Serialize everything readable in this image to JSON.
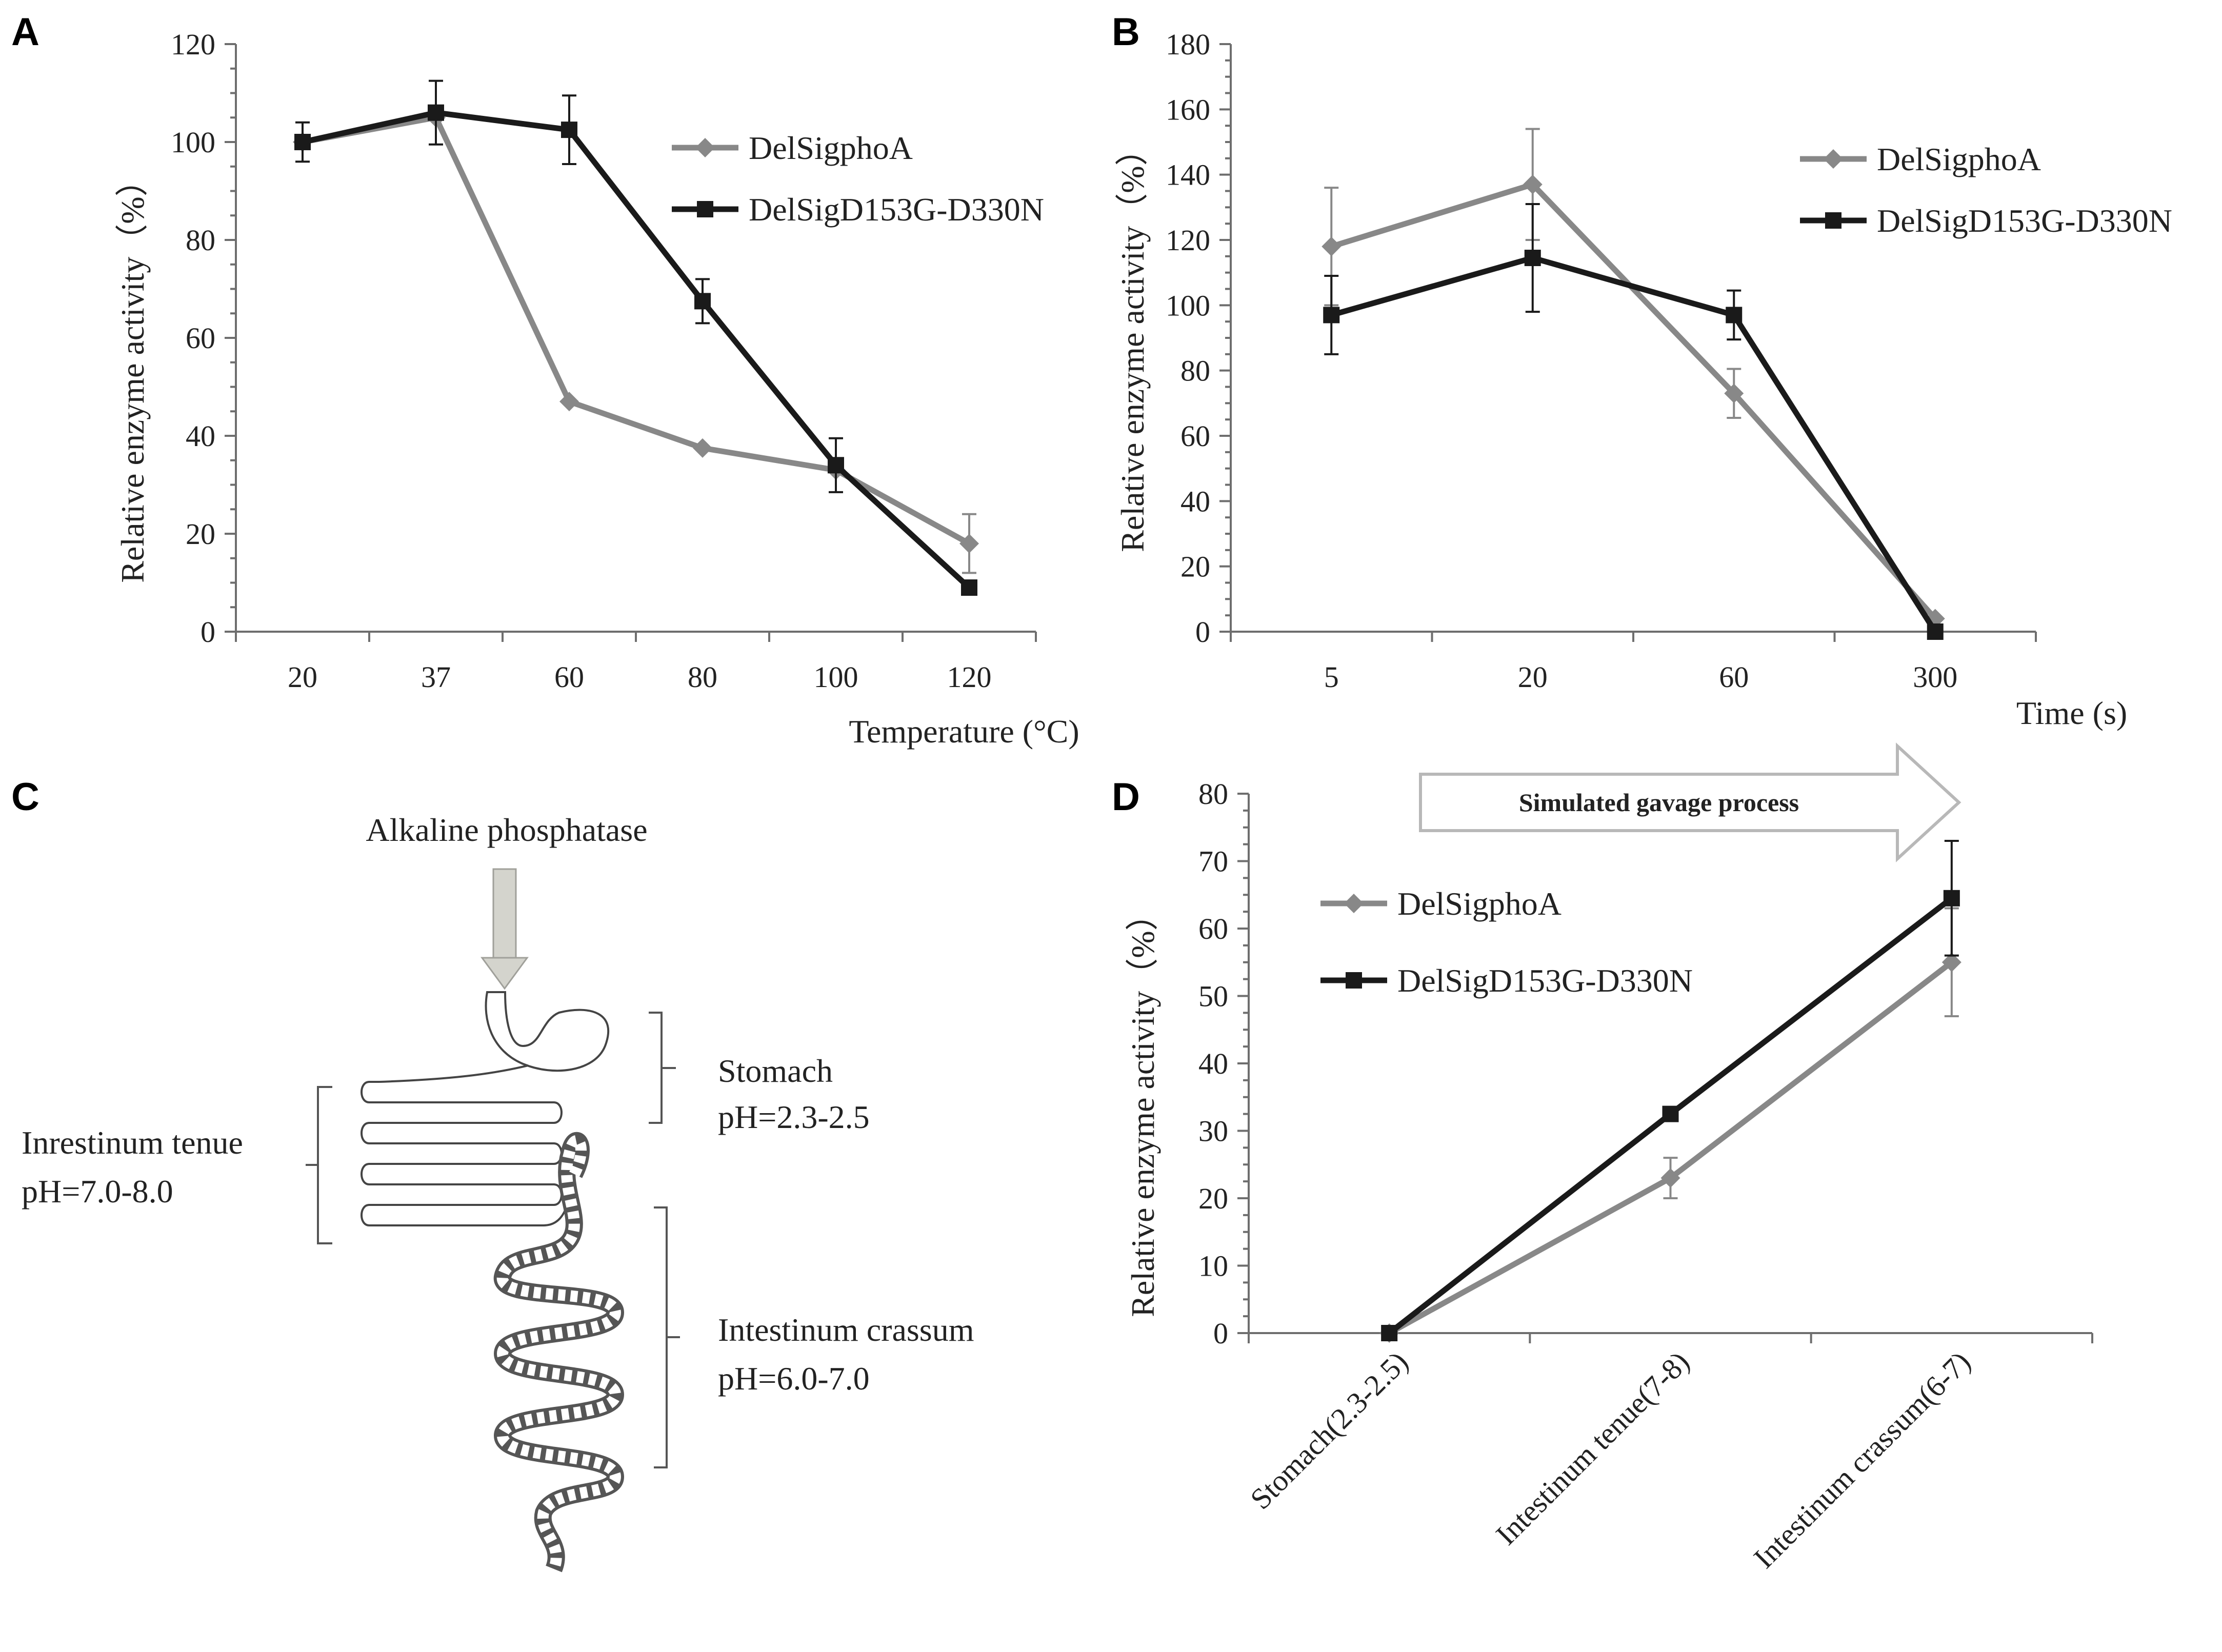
{
  "colors": {
    "series_a": "#888888",
    "series_b": "#1a1a1a",
    "axis": "#6e6e6e",
    "arrow_fill": "#d4d4cd"
  },
  "panels": {
    "A": {
      "letter": "A"
    },
    "B": {
      "letter": "B"
    },
    "C": {
      "letter": "C",
      "top_label": "Alkaline phosphatase",
      "stomach": {
        "name": "Stomach",
        "ph": "pH=2.3-2.5"
      },
      "small_intestine": {
        "name": "Inrestinum tenue",
        "ph": "pH=7.0-8.0"
      },
      "large_intestine": {
        "name": "Intestinum crassum",
        "ph": "pH=6.0-7.0"
      },
      "arrow_icon": "down-arrow-icon"
    },
    "D": {
      "letter": "D",
      "process_label": "Simulated gavage process",
      "arrow_icon": "right-arrow-icon"
    }
  },
  "chart_data": [
    {
      "id": "A",
      "type": "line",
      "xlabel": "Temperature (°C)",
      "ylabel": "Relative enzyme activity（%）",
      "categories": [
        "20",
        "37",
        "60",
        "80",
        "100",
        "120"
      ],
      "ylim": [
        0,
        120
      ],
      "yticks": [
        0,
        20,
        40,
        60,
        80,
        100,
        120
      ],
      "legend_position": "top-right",
      "series": [
        {
          "name": "DelSigphoA",
          "marker": "diamond",
          "color": "#888888",
          "values": [
            100,
            105,
            47,
            37.5,
            33,
            18
          ],
          "errors": [
            null,
            null,
            null,
            null,
            null,
            6
          ]
        },
        {
          "name": "DelSigD153G-D330N",
          "marker": "square",
          "color": "#1a1a1a",
          "values": [
            100,
            106,
            102.5,
            67.5,
            34,
            9
          ],
          "errors": [
            4,
            6.5,
            7,
            4.5,
            5.5,
            null
          ]
        }
      ]
    },
    {
      "id": "B",
      "type": "line",
      "xlabel": "Time (s)",
      "ylabel": "Relative enzyme activity（%）",
      "categories": [
        "5",
        "20",
        "60",
        "300"
      ],
      "ylim": [
        0,
        180
      ],
      "yticks": [
        0,
        20,
        40,
        60,
        80,
        100,
        120,
        140,
        160,
        180
      ],
      "legend_position": "top-right",
      "series": [
        {
          "name": "DelSigphoA",
          "marker": "diamond",
          "color": "#888888",
          "values": [
            118,
            137,
            73,
            4
          ],
          "errors": [
            18,
            17,
            7.5,
            null
          ]
        },
        {
          "name": "DelSigD153G-D330N",
          "marker": "square",
          "color": "#1a1a1a",
          "values": [
            97,
            114.5,
            97,
            0
          ],
          "errors": [
            12,
            16.5,
            7.5,
            null
          ]
        }
      ]
    },
    {
      "id": "D",
      "type": "line",
      "xlabel": "",
      "ylabel": "Relative enzyme activity（%）",
      "categories": [
        "Stomach(2.3-2.5)",
        "Intestinum tenue(7-8)",
        "Intestinum crassum(6-7)"
      ],
      "ylim": [
        0,
        80
      ],
      "yticks": [
        0,
        10,
        20,
        30,
        40,
        50,
        60,
        70,
        80
      ],
      "legend_position": "top-left",
      "series": [
        {
          "name": "DelSigphoA",
          "marker": "diamond",
          "color": "#888888",
          "values": [
            0,
            23,
            55
          ],
          "errors": [
            null,
            3,
            8
          ]
        },
        {
          "name": "DelSigD153G-D330N",
          "marker": "square",
          "color": "#1a1a1a",
          "values": [
            0,
            32.5,
            64.5
          ],
          "errors": [
            null,
            null,
            8.5
          ]
        }
      ]
    }
  ]
}
